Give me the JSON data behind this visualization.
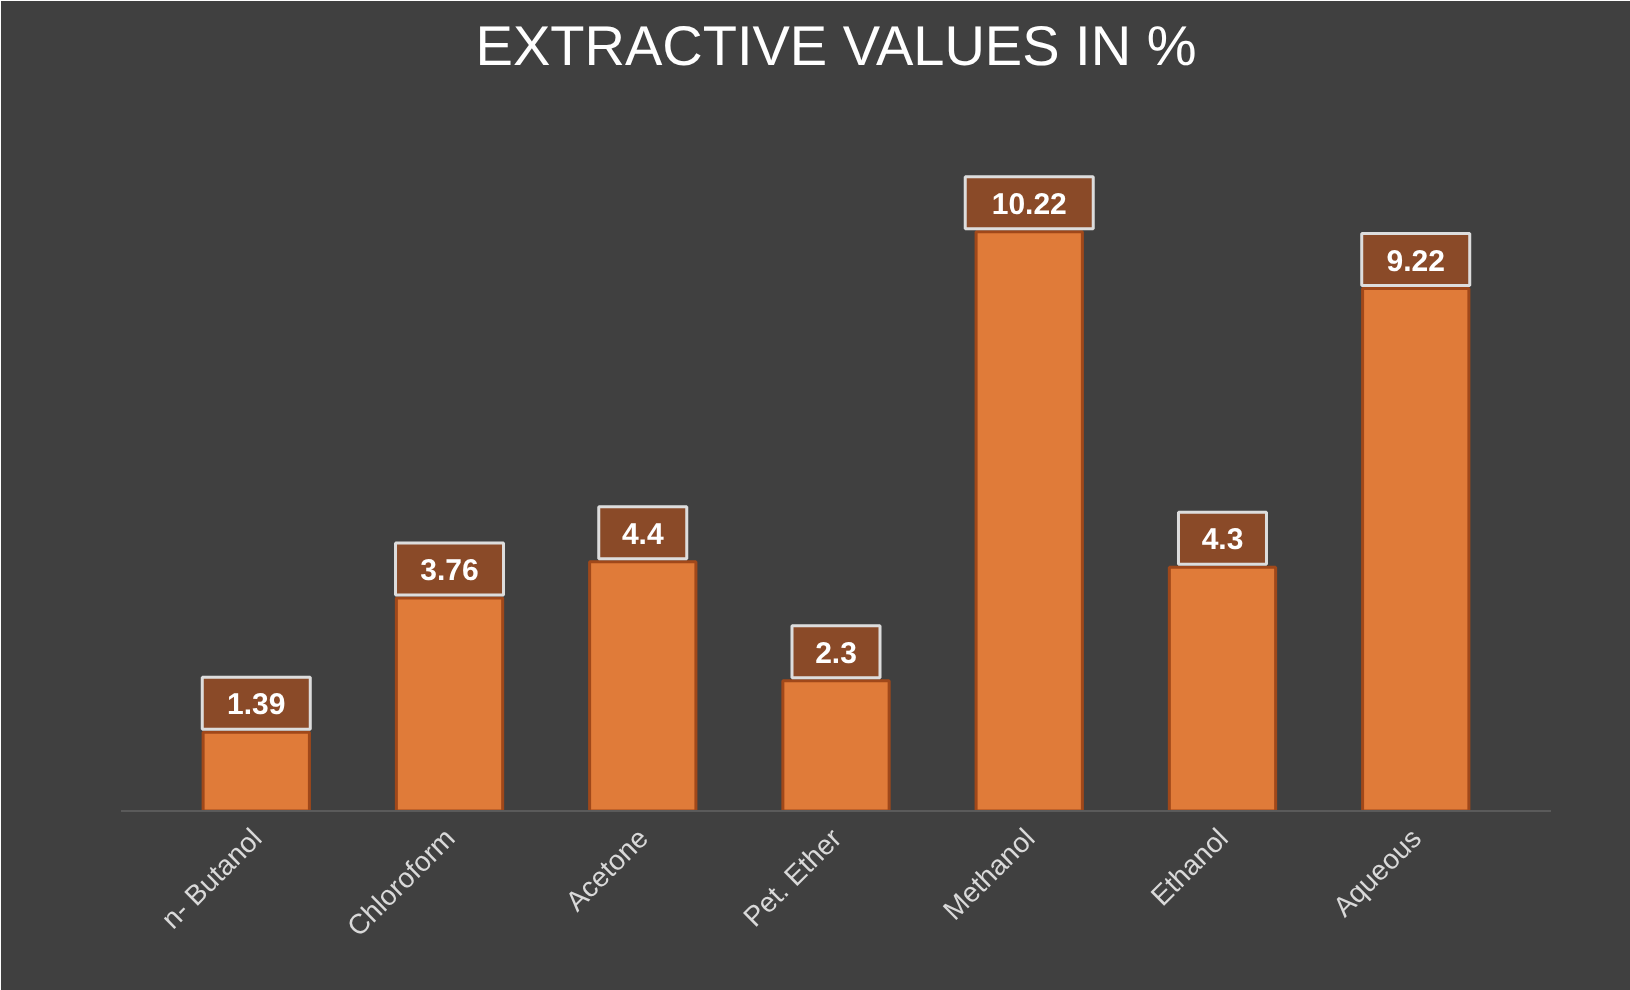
{
  "chart_data": {
    "type": "bar",
    "title": "EXTRACTIVE VALUES IN %",
    "categories": [
      "n- Butanol",
      "Chloroform",
      "Acetone",
      "Pet. Ether",
      "Methanol",
      "Ethanol",
      "Aqueous"
    ],
    "values": [
      1.39,
      3.76,
      4.4,
      2.3,
      10.22,
      4.3,
      9.22
    ],
    "color": "#e07b39",
    "data_labels": true
  }
}
